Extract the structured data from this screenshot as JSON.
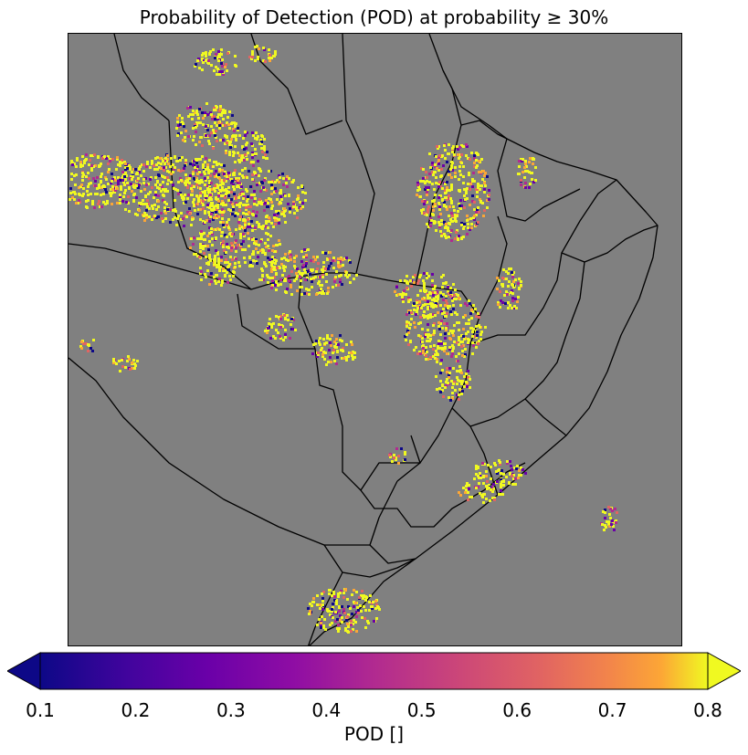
{
  "title": "Probability of Detection (POD) at probability ≥ 30%",
  "map": {
    "background_color": "#808080",
    "border_color": "#000000",
    "color_scale": [
      "#0d0887",
      "#7e03a8",
      "#cc4778",
      "#f89540",
      "#f0f921"
    ]
  },
  "colorbar": {
    "label": "POD []",
    "ticks": [
      "0.1",
      "0.2",
      "0.3",
      "0.4",
      "0.5",
      "0.6",
      "0.7",
      "0.8"
    ],
    "min": 0.1,
    "max": 0.8,
    "extend": "both",
    "colormap": "plasma"
  }
}
